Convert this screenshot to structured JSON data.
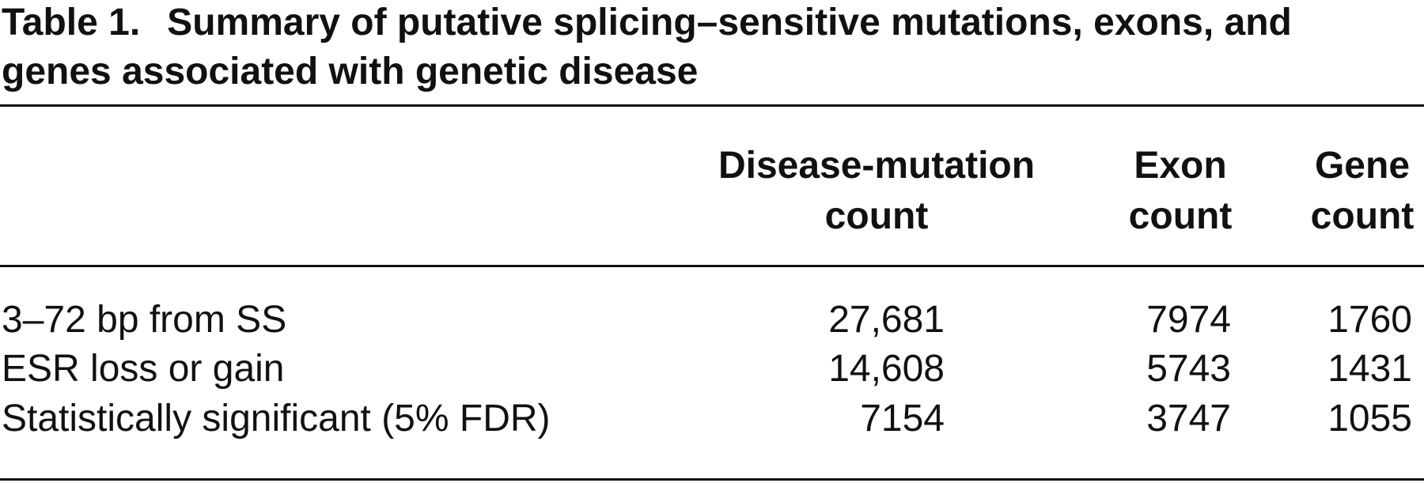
{
  "title": {
    "label": "Table 1.",
    "text": "Summary of putative splicing–sensitive mutations, exons, and genes associated with genetic disease"
  },
  "table": {
    "columns": [
      "Disease-mutation count",
      "Exon count",
      "Gene count"
    ],
    "rows": [
      [
        "3–72 bp from SS",
        "27,681",
        "7974",
        "1760"
      ],
      [
        "ESR loss or gain",
        "14,608",
        "5743",
        "1431"
      ],
      [
        "Statistically significant (5% FDR)",
        "7154",
        "3747",
        "1055"
      ]
    ]
  }
}
